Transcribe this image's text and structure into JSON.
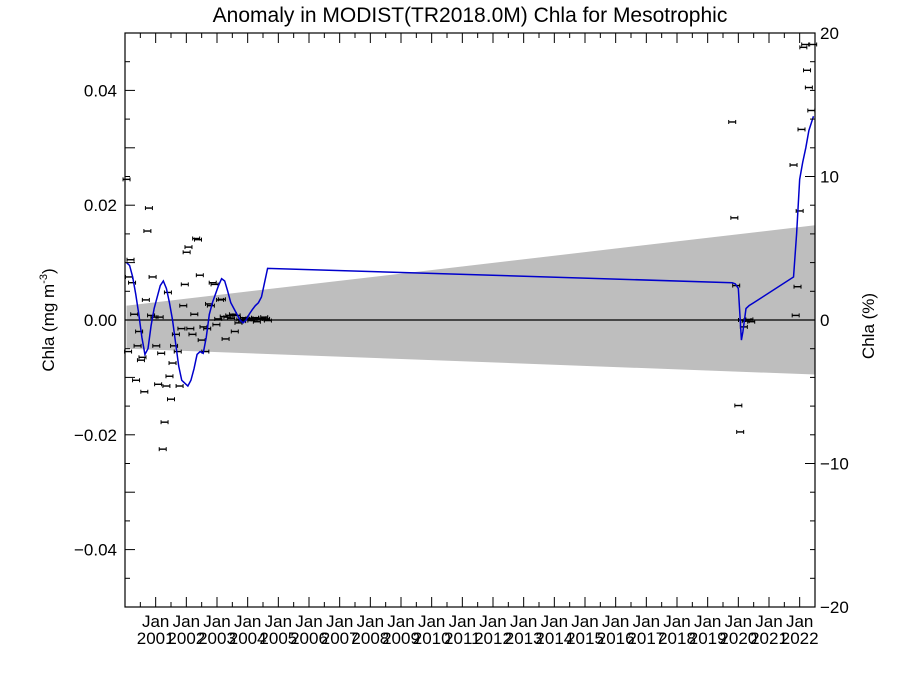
{
  "chart_data": {
    "type": "line",
    "title": "Anomaly in MODIST(TR2018.0M) Chla for Mesotrophic",
    "ylabel_left_main": "Chla (mg m",
    "ylabel_left_sup": "-3",
    "ylabel_left_tail": ")",
    "ylabel_right": "Chla (%)",
    "xlim": [
      2000.0,
      2022.5
    ],
    "ylim_left": [
      -0.05,
      0.05
    ],
    "ylim_right": [
      -20,
      20
    ],
    "yticks_left": [
      {
        "value": -0.04,
        "label": "−0.04"
      },
      {
        "value": -0.02,
        "label": "−0.02"
      },
      {
        "value": 0.0,
        "label": "0.00"
      },
      {
        "value": 0.02,
        "label": "0.02"
      },
      {
        "value": 0.04,
        "label": "0.04"
      }
    ],
    "yticks_right": [
      {
        "value": -20,
        "label": "−20"
      },
      {
        "value": -10,
        "label": "−10"
      },
      {
        "value": 0,
        "label": "0"
      },
      {
        "value": 10,
        "label": "10"
      },
      {
        "value": 20,
        "label": "20"
      }
    ],
    "xticks": [
      {
        "value": 2001.0,
        "month": "Jan",
        "year": "2001"
      },
      {
        "value": 2002.0,
        "month": "Jan",
        "year": "2002"
      },
      {
        "value": 2003.0,
        "month": "Jan",
        "year": "2003"
      },
      {
        "value": 2004.0,
        "month": "Jan",
        "year": "2004"
      },
      {
        "value": 2005.0,
        "month": "Jan",
        "year": "2005"
      },
      {
        "value": 2006.0,
        "month": "Jan",
        "year": "2006"
      },
      {
        "value": 2007.0,
        "month": "Jan",
        "year": "2007"
      },
      {
        "value": 2008.0,
        "month": "Jan",
        "year": "2008"
      },
      {
        "value": 2009.0,
        "month": "Jan",
        "year": "2009"
      },
      {
        "value": 2010.0,
        "month": "Jan",
        "year": "2010"
      },
      {
        "value": 2011.0,
        "month": "Jan",
        "year": "2011"
      },
      {
        "value": 2012.0,
        "month": "Jan",
        "year": "2012"
      },
      {
        "value": 2013.0,
        "month": "Jan",
        "year": "2013"
      },
      {
        "value": 2014.0,
        "month": "Jan",
        "year": "2014"
      },
      {
        "value": 2015.0,
        "month": "Jan",
        "year": "2015"
      },
      {
        "value": 2016.0,
        "month": "Jan",
        "year": "2016"
      },
      {
        "value": 2017.0,
        "month": "Jan",
        "year": "2017"
      },
      {
        "value": 2018.0,
        "month": "Jan",
        "year": "2018"
      },
      {
        "value": 2019.0,
        "month": "Jan",
        "year": "2019"
      },
      {
        "value": 2020.0,
        "month": "Jan",
        "year": "2020"
      },
      {
        "value": 2021.0,
        "month": "Jan",
        "year": "2021"
      },
      {
        "value": 2022.0,
        "month": "Jan",
        "year": "2022"
      }
    ],
    "zero_line": 0.0,
    "trend_band": {
      "x": [
        2000.05,
        2022.5
      ],
      "upper": [
        0.0025,
        0.0165
      ],
      "lower": [
        -0.005,
        -0.0095
      ]
    },
    "series": [
      {
        "color": "#0000cc",
        "x": [
          2000.05,
          2000.15,
          2000.25,
          2000.35,
          2000.45,
          2000.55,
          2000.65,
          2000.75,
          2000.85,
          2000.95,
          2001.05,
          2001.15,
          2001.25,
          2001.35,
          2001.45,
          2001.55,
          2001.65,
          2001.75,
          2001.85,
          2001.95,
          2002.05,
          2002.15,
          2002.25,
          2002.35,
          2002.45,
          2002.55,
          2002.65,
          2002.75,
          2002.85,
          2002.95,
          2003.05,
          2003.15,
          2003.25,
          2003.35,
          2003.45,
          2003.55,
          2003.65,
          2003.75,
          2003.85,
          2003.95,
          2004.05,
          2004.15,
          2004.25,
          2004.35,
          2004.45,
          2004.55,
          2004.65,
          2019.8,
          2019.9,
          2020.0,
          2020.05,
          2020.1,
          2020.15,
          2020.25,
          2020.35,
          2020.5,
          2021.8,
          2021.9,
          2022.0,
          2022.1,
          2022.2,
          2022.3,
          2022.45
        ],
        "y": [
          0.01,
          0.0095,
          0.0075,
          0.0045,
          0.001,
          -0.003,
          -0.006,
          -0.005,
          -0.001,
          0.002,
          0.004,
          0.006,
          0.0068,
          0.0055,
          0.003,
          0.0,
          -0.004,
          -0.008,
          -0.0105,
          -0.011,
          -0.0115,
          -0.0105,
          -0.0085,
          -0.006,
          -0.0055,
          -0.0058,
          -0.003,
          0.001,
          0.003,
          0.0045,
          0.006,
          0.0072,
          0.0068,
          0.005,
          0.003,
          0.002,
          0.001,
          0.0,
          -0.0005,
          0.0,
          0.001,
          0.0018,
          0.0025,
          0.003,
          0.004,
          0.0065,
          0.009,
          0.0065,
          0.0063,
          0.0055,
          0.001,
          -0.0035,
          -0.002,
          0.002,
          0.0025,
          0.003,
          0.0075,
          0.015,
          0.0245,
          0.0275,
          0.03,
          0.033,
          0.0355
        ]
      }
    ],
    "points": {
      "x": [
        2000.05,
        2000.1,
        2000.13,
        2000.18,
        2000.23,
        2000.3,
        2000.36,
        2000.41,
        2000.46,
        2000.52,
        2000.57,
        2000.63,
        2000.68,
        2000.73,
        2000.78,
        2000.85,
        2000.9,
        2000.96,
        2001.02,
        2001.08,
        2001.13,
        2001.18,
        2001.23,
        2001.29,
        2001.35,
        2001.4,
        2001.45,
        2001.5,
        2001.55,
        2001.6,
        2001.66,
        2001.72,
        2001.78,
        2001.84,
        2001.9,
        2001.95,
        2002.01,
        2002.07,
        2002.13,
        2002.2,
        2002.26,
        2002.32,
        2002.38,
        2002.44,
        2002.5,
        2002.56,
        2002.62,
        2002.68,
        2002.74,
        2002.8,
        2002.86,
        2002.92,
        2002.98,
        2003.04,
        2003.1,
        2003.16,
        2003.22,
        2003.28,
        2003.34,
        2003.4,
        2003.46,
        2003.52,
        2003.58,
        2003.64,
        2003.7,
        2003.76,
        2003.82,
        2003.88,
        2003.94,
        2004.0,
        2004.06,
        2004.12,
        2004.18,
        2004.24,
        2004.3,
        2004.36,
        2004.42,
        2004.48,
        2004.54,
        2004.6,
        2004.66,
        2019.8,
        2019.87,
        2019.93,
        2020.0,
        2020.06,
        2020.12,
        2020.18,
        2020.24,
        2020.3,
        2020.36,
        2020.42,
        2021.8,
        2021.87,
        2021.93,
        2022.0,
        2022.06,
        2022.12,
        2022.18,
        2022.24,
        2022.3,
        2022.38,
        2022.44
      ],
      "y": [
        0.0245,
        -0.0055,
        0.0075,
        0.0105,
        0.0065,
        0.001,
        -0.0105,
        -0.0045,
        -0.002,
        -0.007,
        -0.0065,
        -0.0125,
        0.0035,
        0.0155,
        0.0195,
        0.0008,
        0.0075,
        0.0005,
        -0.0045,
        -0.0112,
        0.0005,
        -0.0058,
        -0.0225,
        -0.0178,
        -0.0115,
        0.0048,
        -0.0098,
        -0.0138,
        -0.0075,
        -0.0045,
        -0.0025,
        -0.0055,
        -0.0115,
        -0.0015,
        0.0025,
        0.0062,
        0.0118,
        0.0127,
        -0.0015,
        -0.0025,
        0.001,
        0.0142,
        0.014,
        0.0078,
        -0.0035,
        -0.0012,
        -0.0055,
        -0.0015,
        0.0028,
        0.0025,
        0.0065,
        0.0062,
        -0.0008,
        0.0002,
        0.0035,
        0.0036,
        0.0006,
        -0.0033,
        0.0005,
        0.0008,
        0.0003,
        0.001,
        -0.002,
        0.0008,
        -0.0005,
        0.0001,
        -0.0002,
        0.0004,
        0.0002,
        0.0001,
        0.0003,
        -0.0001,
        0.0002,
        0.0004,
        -0.0003,
        0.0002,
        0.0001,
        0.0003,
        0.0005,
        0.0002,
        -0.0001,
        0.0345,
        0.0178,
        0.006,
        -0.0149,
        -0.0195,
        0.0,
        -0.0012,
        -0.0002,
        0.0,
        0.0001,
        -0.0003,
        0.027,
        0.0008,
        0.0058,
        0.019,
        0.0332,
        0.0475,
        0.048,
        0.0435,
        0.0405,
        0.0365,
        0.048
      ]
    }
  }
}
